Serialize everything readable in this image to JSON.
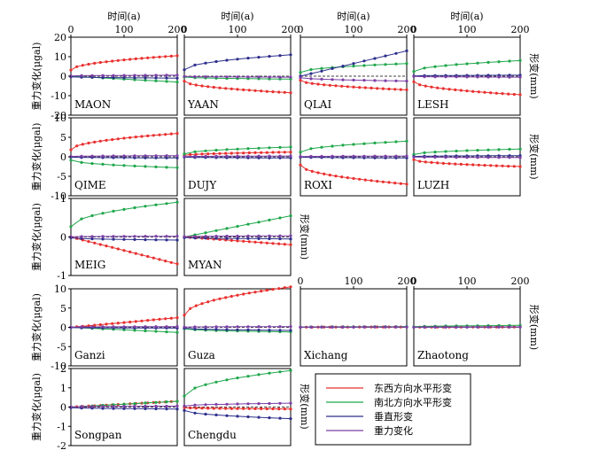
{
  "figure": {
    "top_axis_label": "时间(a)",
    "left_axis_label": "重力变化(μgal)",
    "right_axis_label": "形变(mm)"
  },
  "legend": [
    {
      "label": "东西方向水平形变",
      "color": "#e8302f"
    },
    {
      "label": "南北方向水平形变",
      "color": "#1ea64a"
    },
    {
      "label": "垂直形变",
      "color": "#2c2d8c"
    },
    {
      "label": "重力变化",
      "color": "#7b3fa6"
    }
  ],
  "chart_data": [
    {
      "type": "line",
      "site": "MAON",
      "x_label": "时间(a)",
      "xlim": [
        0,
        200
      ],
      "xticks": [
        0,
        100,
        200
      ],
      "ylim": [
        -20,
        20
      ],
      "yticks": [
        -20,
        -10,
        0,
        10,
        20
      ],
      "y_label": "重力变化(μgal)",
      "series": [
        {
          "name": "东西方向水平形变",
          "curve": "sat",
          "end": 10.5
        },
        {
          "name": "南北方向水平形变",
          "curve": "lin",
          "end": -3.0
        },
        {
          "name": "垂直形变",
          "curve": "sat",
          "end": -1.0
        },
        {
          "name": "重力变化",
          "curve": "sat",
          "end": 0.5
        }
      ]
    },
    {
      "type": "line",
      "site": "YAAN",
      "x_label": "时间(a)",
      "xlim": [
        0,
        200
      ],
      "xticks": [
        0,
        100,
        200
      ],
      "ylim": [
        -20,
        20
      ],
      "series": [
        {
          "name": "东西方向水平形变",
          "curve": "sat",
          "end": -8.5
        },
        {
          "name": "南北方向水平形变",
          "curve": "sat",
          "end": -1.5
        },
        {
          "name": "垂直形变",
          "curve": "sat",
          "end": 11.0
        },
        {
          "name": "重力变化",
          "curve": "sat",
          "end": -0.5
        }
      ]
    },
    {
      "type": "line",
      "site": "QLAI",
      "x_label": "时间(a)",
      "xlim": [
        0,
        200
      ],
      "xticks": [
        0,
        100,
        200
      ],
      "ylim": [
        -20,
        20
      ],
      "series": [
        {
          "name": "东西方向水平形变",
          "curve": "sat",
          "end": -7.0
        },
        {
          "name": "南北方向水平形变",
          "curve": "sat",
          "end": 6.5
        },
        {
          "name": "垂直形变",
          "curve": "lin",
          "end": 13.0
        },
        {
          "name": "重力变化",
          "curve": "sat",
          "end": -2.5
        }
      ]
    },
    {
      "type": "line",
      "site": "LESH",
      "x_label": "时间(a)",
      "xlim": [
        0,
        200
      ],
      "xticks": [
        0,
        100,
        200
      ],
      "ylim": [
        -20,
        20
      ],
      "y2_label": "形变(mm)",
      "series": [
        {
          "name": "东西方向水平形变",
          "curve": "sat",
          "end": -9.5
        },
        {
          "name": "南北方向水平形变",
          "curve": "sat",
          "end": 8.0
        },
        {
          "name": "垂直形变",
          "curve": "sat",
          "end": 0.5
        },
        {
          "name": "重力变化",
          "curve": "sat",
          "end": -0.5
        }
      ]
    },
    {
      "type": "line",
      "site": "QIME",
      "xlim": [
        0,
        200
      ],
      "ylim": [
        -10,
        10
      ],
      "yticks": [
        -10,
        -5,
        0,
        5,
        10
      ],
      "y_label": "重力变化(μgal)",
      "series": [
        {
          "name": "东西方向水平形变",
          "curve": "sat",
          "end": 6.0
        },
        {
          "name": "南北方向水平形变",
          "curve": "sat",
          "end": -2.8
        },
        {
          "name": "垂直形变",
          "curve": "sat",
          "end": -0.3
        },
        {
          "name": "重力变化",
          "curve": "sat",
          "end": 0.3
        }
      ]
    },
    {
      "type": "line",
      "site": "DUJY",
      "xlim": [
        0,
        200
      ],
      "ylim": [
        -10,
        10
      ],
      "series": [
        {
          "name": "东西方向水平形变",
          "curve": "sat",
          "end": 1.2
        },
        {
          "name": "南北方向水平形变",
          "curve": "sat",
          "end": 2.5
        },
        {
          "name": "垂直形变",
          "curve": "sat",
          "end": -0.3
        },
        {
          "name": "重力变化",
          "curve": "sat",
          "end": 0.2
        }
      ]
    },
    {
      "type": "line",
      "site": "ROXI",
      "xlim": [
        0,
        200
      ],
      "ylim": [
        -10,
        10
      ],
      "series": [
        {
          "name": "东西方向水平形变",
          "curve": "sat",
          "end": -7.0
        },
        {
          "name": "南北方向水平形变",
          "curve": "sat",
          "end": 4.0
        },
        {
          "name": "垂直形变",
          "curve": "sat",
          "end": -0.3
        },
        {
          "name": "重力变化",
          "curve": "sat",
          "end": 0.2
        }
      ]
    },
    {
      "type": "line",
      "site": "LUZH",
      "xlim": [
        0,
        200
      ],
      "ylim": [
        -10,
        10
      ],
      "y2_label": "形变(mm)",
      "series": [
        {
          "name": "东西方向水平形变",
          "curve": "sat",
          "end": -2.5
        },
        {
          "name": "南北方向水平形变",
          "curve": "sat",
          "end": 2.0
        },
        {
          "name": "垂直形变",
          "curve": "sat",
          "end": 0.3
        },
        {
          "name": "重力变化",
          "curve": "sat",
          "end": -0.2
        }
      ]
    },
    {
      "type": "line",
      "site": "MEIG",
      "xlim": [
        0,
        200
      ],
      "ylim": [
        -1,
        1
      ],
      "yticks": [
        -1,
        0,
        1
      ],
      "y_label": "重力变化(μgal)",
      "series": [
        {
          "name": "东西方向水平形变",
          "curve": "lin",
          "end": -0.7
        },
        {
          "name": "南北方向水平形变",
          "curve": "sat",
          "end": 0.9
        },
        {
          "name": "垂直形变",
          "curve": "sat",
          "end": -0.08
        },
        {
          "name": "重力变化",
          "curve": "sat",
          "end": 0.02
        }
      ]
    },
    {
      "type": "line",
      "site": "MYAN",
      "xlim": [
        0,
        200
      ],
      "ylim": [
        -1,
        1
      ],
      "y2_label": "形变(mm)",
      "series": [
        {
          "name": "东西方向水平形变",
          "curve": "lin",
          "end": -0.2
        },
        {
          "name": "南北方向水平形变",
          "curve": "lin",
          "end": 0.55
        },
        {
          "name": "垂直形变",
          "curve": "sat",
          "end": -0.05
        },
        {
          "name": "重力变化",
          "curve": "sat",
          "end": 0.03
        }
      ]
    },
    {
      "type": "line",
      "site": "Ganzi",
      "xlim": [
        0,
        200
      ],
      "ylim": [
        -10,
        10
      ],
      "yticks": [
        -10,
        -5,
        0,
        5,
        10
      ],
      "y_label": "重力变化(μgal)",
      "series": [
        {
          "name": "东西方向水平形变",
          "curve": "lin",
          "end": 2.5
        },
        {
          "name": "南北方向水平形变",
          "curve": "lin",
          "end": -1.3
        },
        {
          "name": "垂直形变",
          "curve": "sat",
          "end": -0.2
        },
        {
          "name": "重力变化",
          "curve": "sat",
          "end": 0.2
        }
      ]
    },
    {
      "type": "line",
      "site": "Guza",
      "xlim": [
        0,
        200
      ],
      "ylim": [
        -10,
        10
      ],
      "series": [
        {
          "name": "东西方向水平形变",
          "curve": "sat",
          "end": 10.5
        },
        {
          "name": "南北方向水平形变",
          "curve": "sat",
          "end": -1.2
        },
        {
          "name": "垂直形变",
          "curve": "sat",
          "end": -0.8
        },
        {
          "name": "重力变化",
          "curve": "sat",
          "end": 0.2
        }
      ]
    },
    {
      "type": "line",
      "site": "Xichang",
      "x_label": "",
      "xlim": [
        0,
        200
      ],
      "xticks": [
        0,
        100,
        200
      ],
      "ylim": [
        -10,
        10
      ],
      "series": [
        {
          "name": "东西方向水平形变",
          "curve": "sat",
          "end": 0.1
        },
        {
          "name": "南北方向水平形变",
          "curve": "sat",
          "end": 0.2
        },
        {
          "name": "垂直形变",
          "curve": "sat",
          "end": 0.1
        },
        {
          "name": "重力变化",
          "curve": "sat",
          "end": 0.1
        }
      ]
    },
    {
      "type": "line",
      "site": "Zhaotong",
      "xlim": [
        0,
        200
      ],
      "xticks": [
        0,
        100,
        200
      ],
      "ylim": [
        -10,
        10
      ],
      "y2_label": "形变(mm)",
      "series": [
        {
          "name": "东西方向水平形变",
          "curve": "sat",
          "end": 0.1
        },
        {
          "name": "南北方向水平形变",
          "curve": "sat",
          "end": 0.5
        },
        {
          "name": "垂直形变",
          "curve": "sat",
          "end": 0.1
        },
        {
          "name": "重力变化",
          "curve": "sat",
          "end": 0.1
        }
      ]
    },
    {
      "type": "line",
      "site": "Songpan",
      "xlim": [
        0,
        200
      ],
      "ylim": [
        -2,
        2
      ],
      "yticks": [
        -2,
        -1,
        0,
        1,
        2
      ],
      "y_label": "重力变化(μgal)",
      "series": [
        {
          "name": "东西方向水平形变",
          "curve": "lin",
          "end": 0.3
        },
        {
          "name": "南北方向水平形变",
          "curve": "lin",
          "end": 0.3
        },
        {
          "name": "垂直形变",
          "curve": "sat",
          "end": -0.1
        },
        {
          "name": "重力变化",
          "curve": "sat",
          "end": 0.05
        }
      ]
    },
    {
      "type": "line",
      "site": "Chengdu",
      "xlim": [
        0,
        200
      ],
      "ylim": [
        -2,
        2
      ],
      "series": [
        {
          "name": "东西方向水平形变",
          "curve": "sat",
          "end": -0.1
        },
        {
          "name": "南北方向水平形变",
          "curve": "sat",
          "end": 1.9
        },
        {
          "name": "垂直形变",
          "curve": "sat",
          "end": -0.6
        },
        {
          "name": "重力变化",
          "curve": "sat",
          "end": 0.2
        }
      ]
    }
  ]
}
